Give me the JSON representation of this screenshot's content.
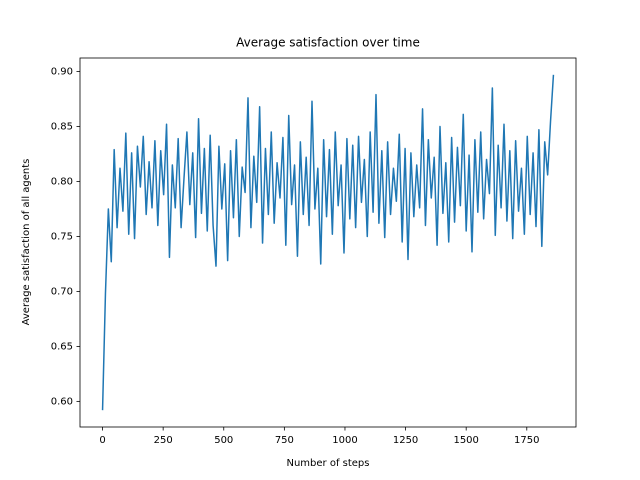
{
  "chart_data": {
    "type": "line",
    "title": "Average satisfaction over time",
    "xlabel": "Number of steps",
    "ylabel": "Average satisfaction of all agents",
    "x": [
      0,
      12,
      24,
      36,
      48,
      60,
      72,
      84,
      96,
      108,
      120,
      132,
      144,
      156,
      168,
      180,
      192,
      204,
      216,
      228,
      240,
      252,
      264,
      276,
      288,
      300,
      312,
      324,
      336,
      348,
      360,
      372,
      384,
      396,
      408,
      420,
      432,
      444,
      456,
      468,
      480,
      492,
      504,
      516,
      528,
      540,
      552,
      564,
      576,
      588,
      600,
      612,
      624,
      636,
      648,
      660,
      672,
      684,
      696,
      708,
      720,
      732,
      744,
      756,
      768,
      780,
      792,
      804,
      816,
      828,
      840,
      852,
      864,
      876,
      888,
      900,
      912,
      924,
      936,
      948,
      960,
      972,
      984,
      996,
      1008,
      1020,
      1032,
      1044,
      1056,
      1068,
      1080,
      1092,
      1104,
      1116,
      1128,
      1140,
      1152,
      1164,
      1176,
      1188,
      1200,
      1212,
      1224,
      1236,
      1248,
      1260,
      1272,
      1284,
      1296,
      1308,
      1320,
      1332,
      1344,
      1356,
      1368,
      1380,
      1392,
      1404,
      1416,
      1428,
      1440,
      1452,
      1464,
      1476,
      1488,
      1500,
      1512,
      1524,
      1536,
      1548,
      1560,
      1572,
      1584,
      1596,
      1608,
      1620,
      1632,
      1644,
      1656,
      1668,
      1680,
      1692,
      1704,
      1716,
      1728,
      1740,
      1752,
      1764,
      1776,
      1788,
      1800,
      1812,
      1824,
      1836,
      1848,
      1860
    ],
    "series": [
      {
        "color": "#1f77b4",
        "values": [
          0.592,
          0.698,
          0.775,
          0.727,
          0.829,
          0.758,
          0.812,
          0.773,
          0.844,
          0.752,
          0.826,
          0.748,
          0.832,
          0.795,
          0.841,
          0.77,
          0.818,
          0.776,
          0.837,
          0.76,
          0.828,
          0.788,
          0.852,
          0.731,
          0.815,
          0.776,
          0.839,
          0.758,
          0.803,
          0.845,
          0.779,
          0.826,
          0.749,
          0.857,
          0.771,
          0.83,
          0.755,
          0.842,
          0.76,
          0.723,
          0.832,
          0.775,
          0.816,
          0.728,
          0.828,
          0.767,
          0.838,
          0.75,
          0.813,
          0.79,
          0.876,
          0.758,
          0.823,
          0.781,
          0.868,
          0.744,
          0.83,
          0.77,
          0.845,
          0.762,
          0.817,
          0.785,
          0.84,
          0.742,
          0.86,
          0.779,
          0.815,
          0.732,
          0.836,
          0.77,
          0.822,
          0.76,
          0.873,
          0.775,
          0.812,
          0.725,
          0.838,
          0.768,
          0.829,
          0.752,
          0.845,
          0.778,
          0.815,
          0.735,
          0.839,
          0.766,
          0.833,
          0.758,
          0.841,
          0.781,
          0.82,
          0.75,
          0.845,
          0.772,
          0.879,
          0.762,
          0.828,
          0.749,
          0.836,
          0.77,
          0.812,
          0.782,
          0.843,
          0.745,
          0.83,
          0.729,
          0.826,
          0.768,
          0.815,
          0.776,
          0.866,
          0.76,
          0.838,
          0.785,
          0.822,
          0.742,
          0.85,
          0.771,
          0.817,
          0.745,
          0.84,
          0.763,
          0.831,
          0.778,
          0.861,
          0.755,
          0.824,
          0.736,
          0.838,
          0.772,
          0.845,
          0.766,
          0.82,
          0.789,
          0.885,
          0.751,
          0.833,
          0.776,
          0.852,
          0.764,
          0.828,
          0.748,
          0.837,
          0.773,
          0.812,
          0.752,
          0.841,
          0.77,
          0.826,
          0.759,
          0.847,
          0.741,
          0.836,
          0.806,
          0.855,
          0.897
        ]
      }
    ],
    "xlim": [
      -93,
      1953
    ],
    "ylim": [
      0.5767,
      0.9123
    ],
    "xticks": [
      0,
      250,
      500,
      750,
      1000,
      1250,
      1500,
      1750
    ],
    "yticks": [
      {
        "value": 0.6,
        "label": "0.60"
      },
      0.65,
      {
        "value": 0.7,
        "label": "0.70"
      },
      0.75,
      {
        "value": 0.8,
        "label": "0.80"
      },
      0.85,
      {
        "value": 0.9,
        "label": "0.90"
      }
    ],
    "grid": false
  }
}
